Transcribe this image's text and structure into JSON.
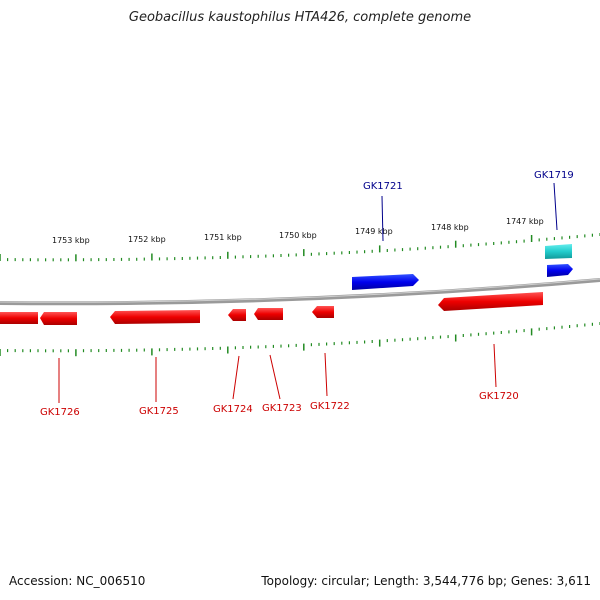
{
  "title": "Geobacillus kaustophilus HTA426, complete genome",
  "footer": {
    "accession": "Accession: NC_006510",
    "summary": "Topology: circular; Length: 3,544,776 bp; Genes: 3,611"
  },
  "colors": {
    "forward_gene": "#0000ee",
    "reverse_gene": "#ee0000",
    "rna_gene": "#22cccc",
    "tick": "#228b22",
    "backbone": "#888888",
    "forward_label": "#00008b",
    "reverse_label": "#cc0000"
  },
  "scale_labels": [
    "1753 kbp",
    "1752 kbp",
    "1751 kbp",
    "1750 kbp",
    "1749 kbp",
    "1748 kbp",
    "1747 kbp"
  ],
  "genes": [
    {
      "name": "GK1726",
      "strand": "reverse"
    },
    {
      "name": "GK1725",
      "strand": "reverse"
    },
    {
      "name": "GK1724",
      "strand": "reverse"
    },
    {
      "name": "GK1723",
      "strand": "reverse"
    },
    {
      "name": "GK1722",
      "strand": "reverse"
    },
    {
      "name": "GK1721",
      "strand": "forward"
    },
    {
      "name": "GK1720",
      "strand": "reverse"
    },
    {
      "name": "GK1719",
      "strand": "forward"
    }
  ]
}
